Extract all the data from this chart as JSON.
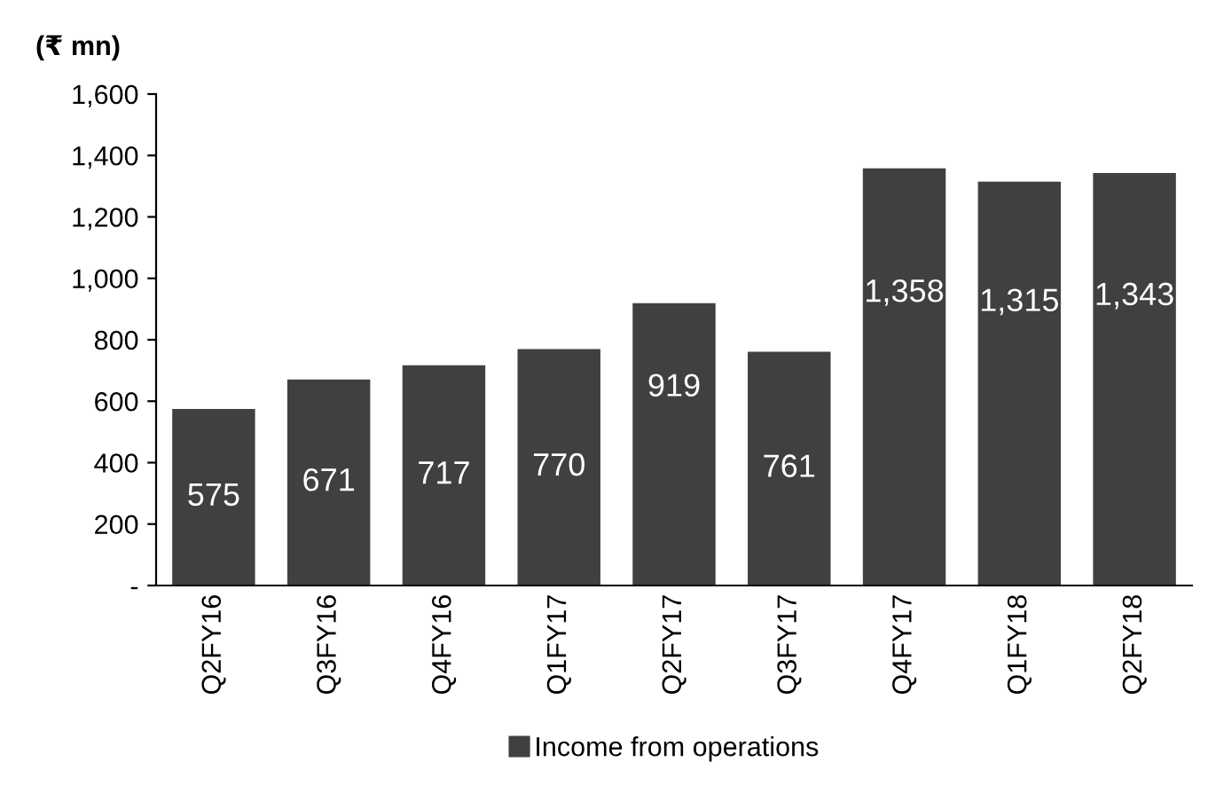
{
  "chart_data": {
    "type": "bar",
    "ylabel": "(₹ mn)",
    "categories": [
      "Q2FY16",
      "Q3FY16",
      "Q4FY16",
      "Q1FY17",
      "Q2FY17",
      "Q3FY17",
      "Q4FY17",
      "Q1FY18",
      "Q2FY18"
    ],
    "series": [
      {
        "name": "Income from operations",
        "color": "#404040",
        "values": [
          575,
          671,
          717,
          770,
          919,
          761,
          1358,
          1315,
          1343
        ],
        "value_labels": [
          "575",
          "671",
          "717",
          "770",
          "919",
          "761",
          "1,358",
          "1,315",
          "1,343"
        ]
      }
    ],
    "ylim": [
      0,
      1600
    ],
    "yticks": [
      {
        "value": 0,
        "label": "-"
      },
      {
        "value": 200,
        "label": "200"
      },
      {
        "value": 400,
        "label": "400"
      },
      {
        "value": 600,
        "label": "600"
      },
      {
        "value": 800,
        "label": "800"
      },
      {
        "value": 1000,
        "label": "1,000"
      },
      {
        "value": 1200,
        "label": "1,200"
      },
      {
        "value": 1400,
        "label": "1,400"
      },
      {
        "value": 1600,
        "label": "1,600"
      }
    ],
    "grid": false,
    "legend": "bottom"
  }
}
